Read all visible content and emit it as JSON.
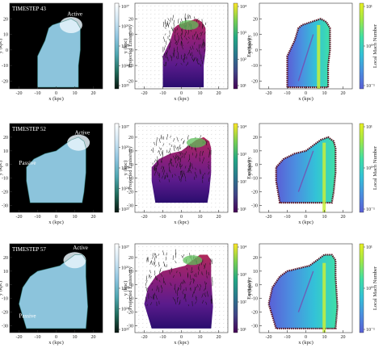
{
  "figure": {
    "x_axis_label": "x (kpc)",
    "y_axis_label": "y (kpc)"
  },
  "colors": {
    "emission_cmap": [
      "#08140e",
      "#1f6b5a",
      "#4da6b0",
      "#8ec5e0",
      "#cfe6f4",
      "#ffffff"
    ],
    "viridis_cmap": [
      "#440154",
      "#414487",
      "#2a788e",
      "#22a884",
      "#7ad151",
      "#fde725"
    ],
    "plasma_bg": [
      "#2a0d6e",
      "#5b1b8c",
      "#8a1f7a",
      "#b02a5a"
    ],
    "mach_cmap": [
      "#5a5fd6",
      "#4b8fe0",
      "#33c2d8",
      "#3fe0a6",
      "#9ee84a",
      "#e8f020"
    ]
  },
  "chart_data": [
    {
      "type": "heatmap",
      "timestep": "TIMESTEP 43",
      "quantity": "Projected Emissivity",
      "xlim": [
        -25,
        25
      ],
      "ylim": [
        -25,
        30
      ],
      "x_ticks": [
        -20,
        -10,
        0,
        10,
        20
      ],
      "y_ticks": [
        -20,
        -10,
        0,
        10,
        20
      ],
      "colorbar_ticks": [
        "10^27",
        "10^26",
        "10^25",
        "10^24",
        "10^23"
      ],
      "annotations": [
        "Active"
      ]
    },
    {
      "type": "heatmap",
      "quantity": "Emissivity",
      "xlim": [
        -25,
        25
      ],
      "ylim": [
        -25,
        30
      ],
      "x_ticks": [
        -20,
        -10,
        0,
        10,
        20
      ],
      "y_ticks": [
        -20,
        -10,
        0,
        10,
        20
      ],
      "colorbar_ticks": [
        "10^4",
        "10^3",
        "10^2",
        "10^1"
      ],
      "annotations": []
    },
    {
      "type": "heatmap",
      "quantity": "Local Mach Number",
      "xlim": [
        -25,
        25
      ],
      "ylim": [
        -25,
        30
      ],
      "x_ticks": [
        -20,
        -10,
        0,
        10,
        20
      ],
      "y_ticks": [
        -20,
        -10,
        0,
        10,
        20
      ],
      "colorbar_ticks": [
        "10^1",
        "10^0",
        "10^-1"
      ],
      "annotations": []
    },
    {
      "type": "heatmap",
      "timestep": "TIMESTEP 52",
      "quantity": "Projected Emissivity",
      "xlim": [
        -25,
        25
      ],
      "ylim": [
        -35,
        30
      ],
      "x_ticks": [
        -20,
        -10,
        0,
        10,
        20
      ],
      "y_ticks": [
        -30,
        -20,
        -10,
        0,
        10,
        20
      ],
      "colorbar_ticks": [
        "10^27",
        "10^26",
        "10^25",
        "10^24",
        "10^23"
      ],
      "annotations": [
        "Passive",
        "Active"
      ]
    },
    {
      "type": "heatmap",
      "quantity": "Emissivity",
      "xlim": [
        -25,
        25
      ],
      "ylim": [
        -35,
        30
      ],
      "x_ticks": [
        -20,
        -10,
        0,
        10,
        20
      ],
      "y_ticks": [
        -30,
        -20,
        -10,
        0,
        10,
        20
      ],
      "colorbar_ticks": [
        "10^4",
        "10^3",
        "10^2",
        "10^1"
      ],
      "annotations": []
    },
    {
      "type": "heatmap",
      "quantity": "Local Mach Number",
      "xlim": [
        -25,
        25
      ],
      "ylim": [
        -35,
        30
      ],
      "x_ticks": [
        -20,
        -10,
        0,
        10,
        20
      ],
      "y_ticks": [
        -30,
        -20,
        -10,
        0,
        10,
        20
      ],
      "colorbar_ticks": [
        "10^1",
        "10^0",
        "10^-1"
      ],
      "annotations": []
    },
    {
      "type": "heatmap",
      "timestep": "TIMESTEP 57",
      "quantity": "Projected Emissivity",
      "xlim": [
        -25,
        25
      ],
      "ylim": [
        -35,
        30
      ],
      "x_ticks": [
        -20,
        -10,
        0,
        10,
        20
      ],
      "y_ticks": [
        -30,
        -20,
        -10,
        0,
        10,
        20
      ],
      "colorbar_ticks": [
        "10^27",
        "10^26",
        "10^25",
        "10^24",
        "10^23"
      ],
      "annotations": [
        "Active",
        "Passive"
      ]
    },
    {
      "type": "heatmap",
      "quantity": "Emissivity",
      "xlim": [
        -25,
        25
      ],
      "ylim": [
        -35,
        30
      ],
      "x_ticks": [
        -20,
        -10,
        0,
        10,
        20
      ],
      "y_ticks": [
        -30,
        -20,
        -10,
        0,
        10,
        20
      ],
      "colorbar_ticks": [
        "10^4",
        "10^3",
        "10^2",
        "10^1"
      ],
      "annotations": []
    },
    {
      "type": "heatmap",
      "quantity": "Local Mach Number",
      "xlim": [
        -25,
        25
      ],
      "ylim": [
        -35,
        30
      ],
      "x_ticks": [
        -20,
        -10,
        0,
        10,
        20
      ],
      "y_ticks": [
        -30,
        -20,
        -10,
        0,
        10,
        20
      ],
      "colorbar_ticks": [
        "10^1",
        "10^0",
        "10^-1"
      ],
      "annotations": []
    }
  ]
}
